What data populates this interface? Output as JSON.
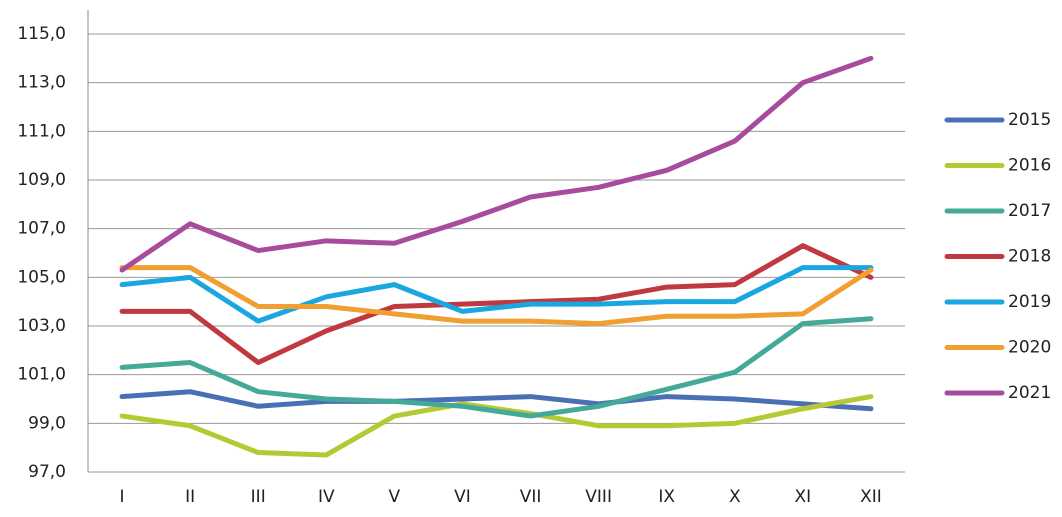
{
  "chart_data": {
    "type": "line",
    "categories": [
      "I",
      "II",
      "III",
      "IV",
      "V",
      "VI",
      "VII",
      "VIII",
      "IX",
      "X",
      "XI",
      "XII"
    ],
    "series": [
      {
        "name": "2015",
        "color": "#4a6fb5",
        "values": [
          100.1,
          100.3,
          99.7,
          99.9,
          99.9,
          100.0,
          100.1,
          99.8,
          100.1,
          100.0,
          99.8,
          99.6
        ]
      },
      {
        "name": "2016",
        "color": "#b5c934",
        "values": [
          99.3,
          98.9,
          97.8,
          97.7,
          99.3,
          99.8,
          99.4,
          98.9,
          98.9,
          99.0,
          99.6,
          100.1
        ]
      },
      {
        "name": "2017",
        "color": "#45a99a",
        "values": [
          101.3,
          101.5,
          100.3,
          100.0,
          99.9,
          99.7,
          99.3,
          99.7,
          100.4,
          101.1,
          103.1,
          103.3
        ]
      },
      {
        "name": "2018",
        "color": "#c0393f",
        "values": [
          103.6,
          103.6,
          101.5,
          102.8,
          103.8,
          103.9,
          104.0,
          104.1,
          104.6,
          104.7,
          106.3,
          105.0
        ]
      },
      {
        "name": "2019",
        "color": "#1aa6de",
        "values": [
          104.7,
          105.0,
          103.2,
          104.2,
          104.7,
          103.6,
          103.9,
          103.9,
          104.0,
          104.0,
          105.4,
          105.4
        ]
      },
      {
        "name": "2020",
        "color": "#f0a030",
        "values": [
          105.4,
          105.4,
          103.8,
          103.8,
          103.5,
          103.2,
          103.2,
          103.1,
          103.4,
          103.4,
          103.5,
          105.3
        ]
      },
      {
        "name": "2021",
        "color": "#a94b9c",
        "values": [
          105.3,
          107.2,
          106.1,
          106.5,
          106.4,
          107.3,
          108.3,
          108.7,
          109.4,
          110.6,
          113.0,
          114.0
        ]
      }
    ],
    "ylim": [
      97,
      115
    ],
    "yticks": [
      {
        "value": 97,
        "label": "97,0"
      },
      {
        "value": 99,
        "label": "99,0"
      },
      {
        "value": 101,
        "label": "101,0"
      },
      {
        "value": 103,
        "label": "103,0"
      },
      {
        "value": 105,
        "label": "105,0"
      },
      {
        "value": 107,
        "label": "107,0"
      },
      {
        "value": 109,
        "label": "109,0"
      },
      {
        "value": 111,
        "label": "111,0"
      },
      {
        "value": 113,
        "label": "113,0"
      },
      {
        "value": 115,
        "label": "115,0"
      }
    ],
    "grid": true,
    "legend": "right"
  }
}
